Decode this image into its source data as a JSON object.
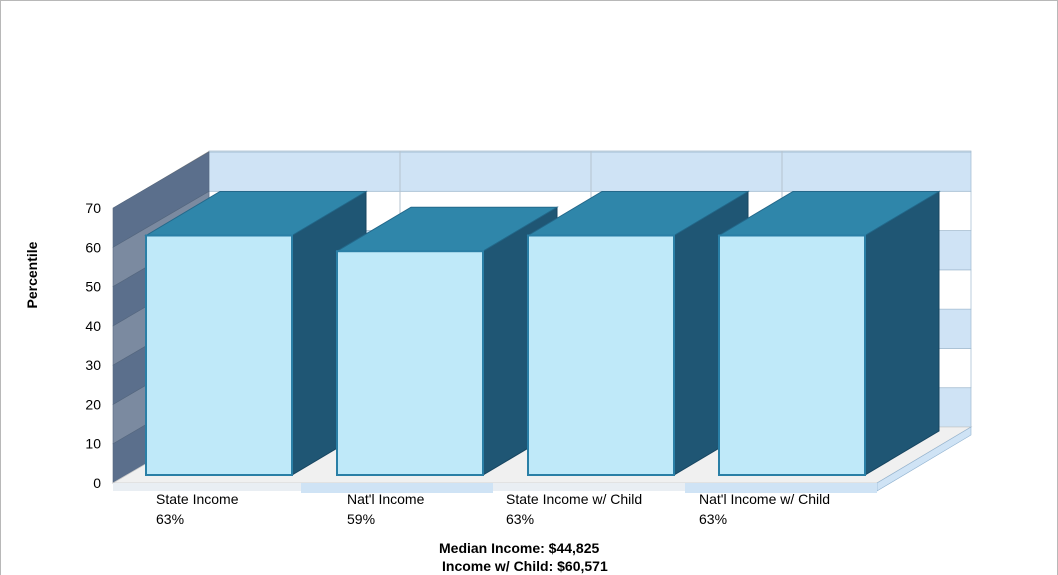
{
  "chart_data": {
    "type": "bar",
    "categories": [
      "State Income",
      "Nat'l Income",
      "State Income w/ Child",
      "Nat'l Income w/ Child"
    ],
    "values": [
      63,
      59,
      63,
      63
    ],
    "value_labels": [
      "63%",
      "59%",
      "63%",
      "63%"
    ],
    "ylabel": "Percentile",
    "ylim": [
      0,
      70
    ],
    "yticks": [
      0,
      10,
      20,
      30,
      40,
      50,
      60,
      70
    ],
    "grid": true,
    "legend": "none",
    "style": "3d",
    "colors": {
      "bar_front": "#bfe9f9",
      "bar_top": "#2f86aa",
      "bar_side": "#1f5674",
      "band_light": "#cfe3f5",
      "band_white": "#ffffff",
      "wall_left": "#5b6f8c",
      "floor": "#f0f0f0"
    }
  },
  "footer": {
    "median_income": "Median Income: $44,825",
    "income_with_child": "Income w/ Child: $60,571"
  }
}
